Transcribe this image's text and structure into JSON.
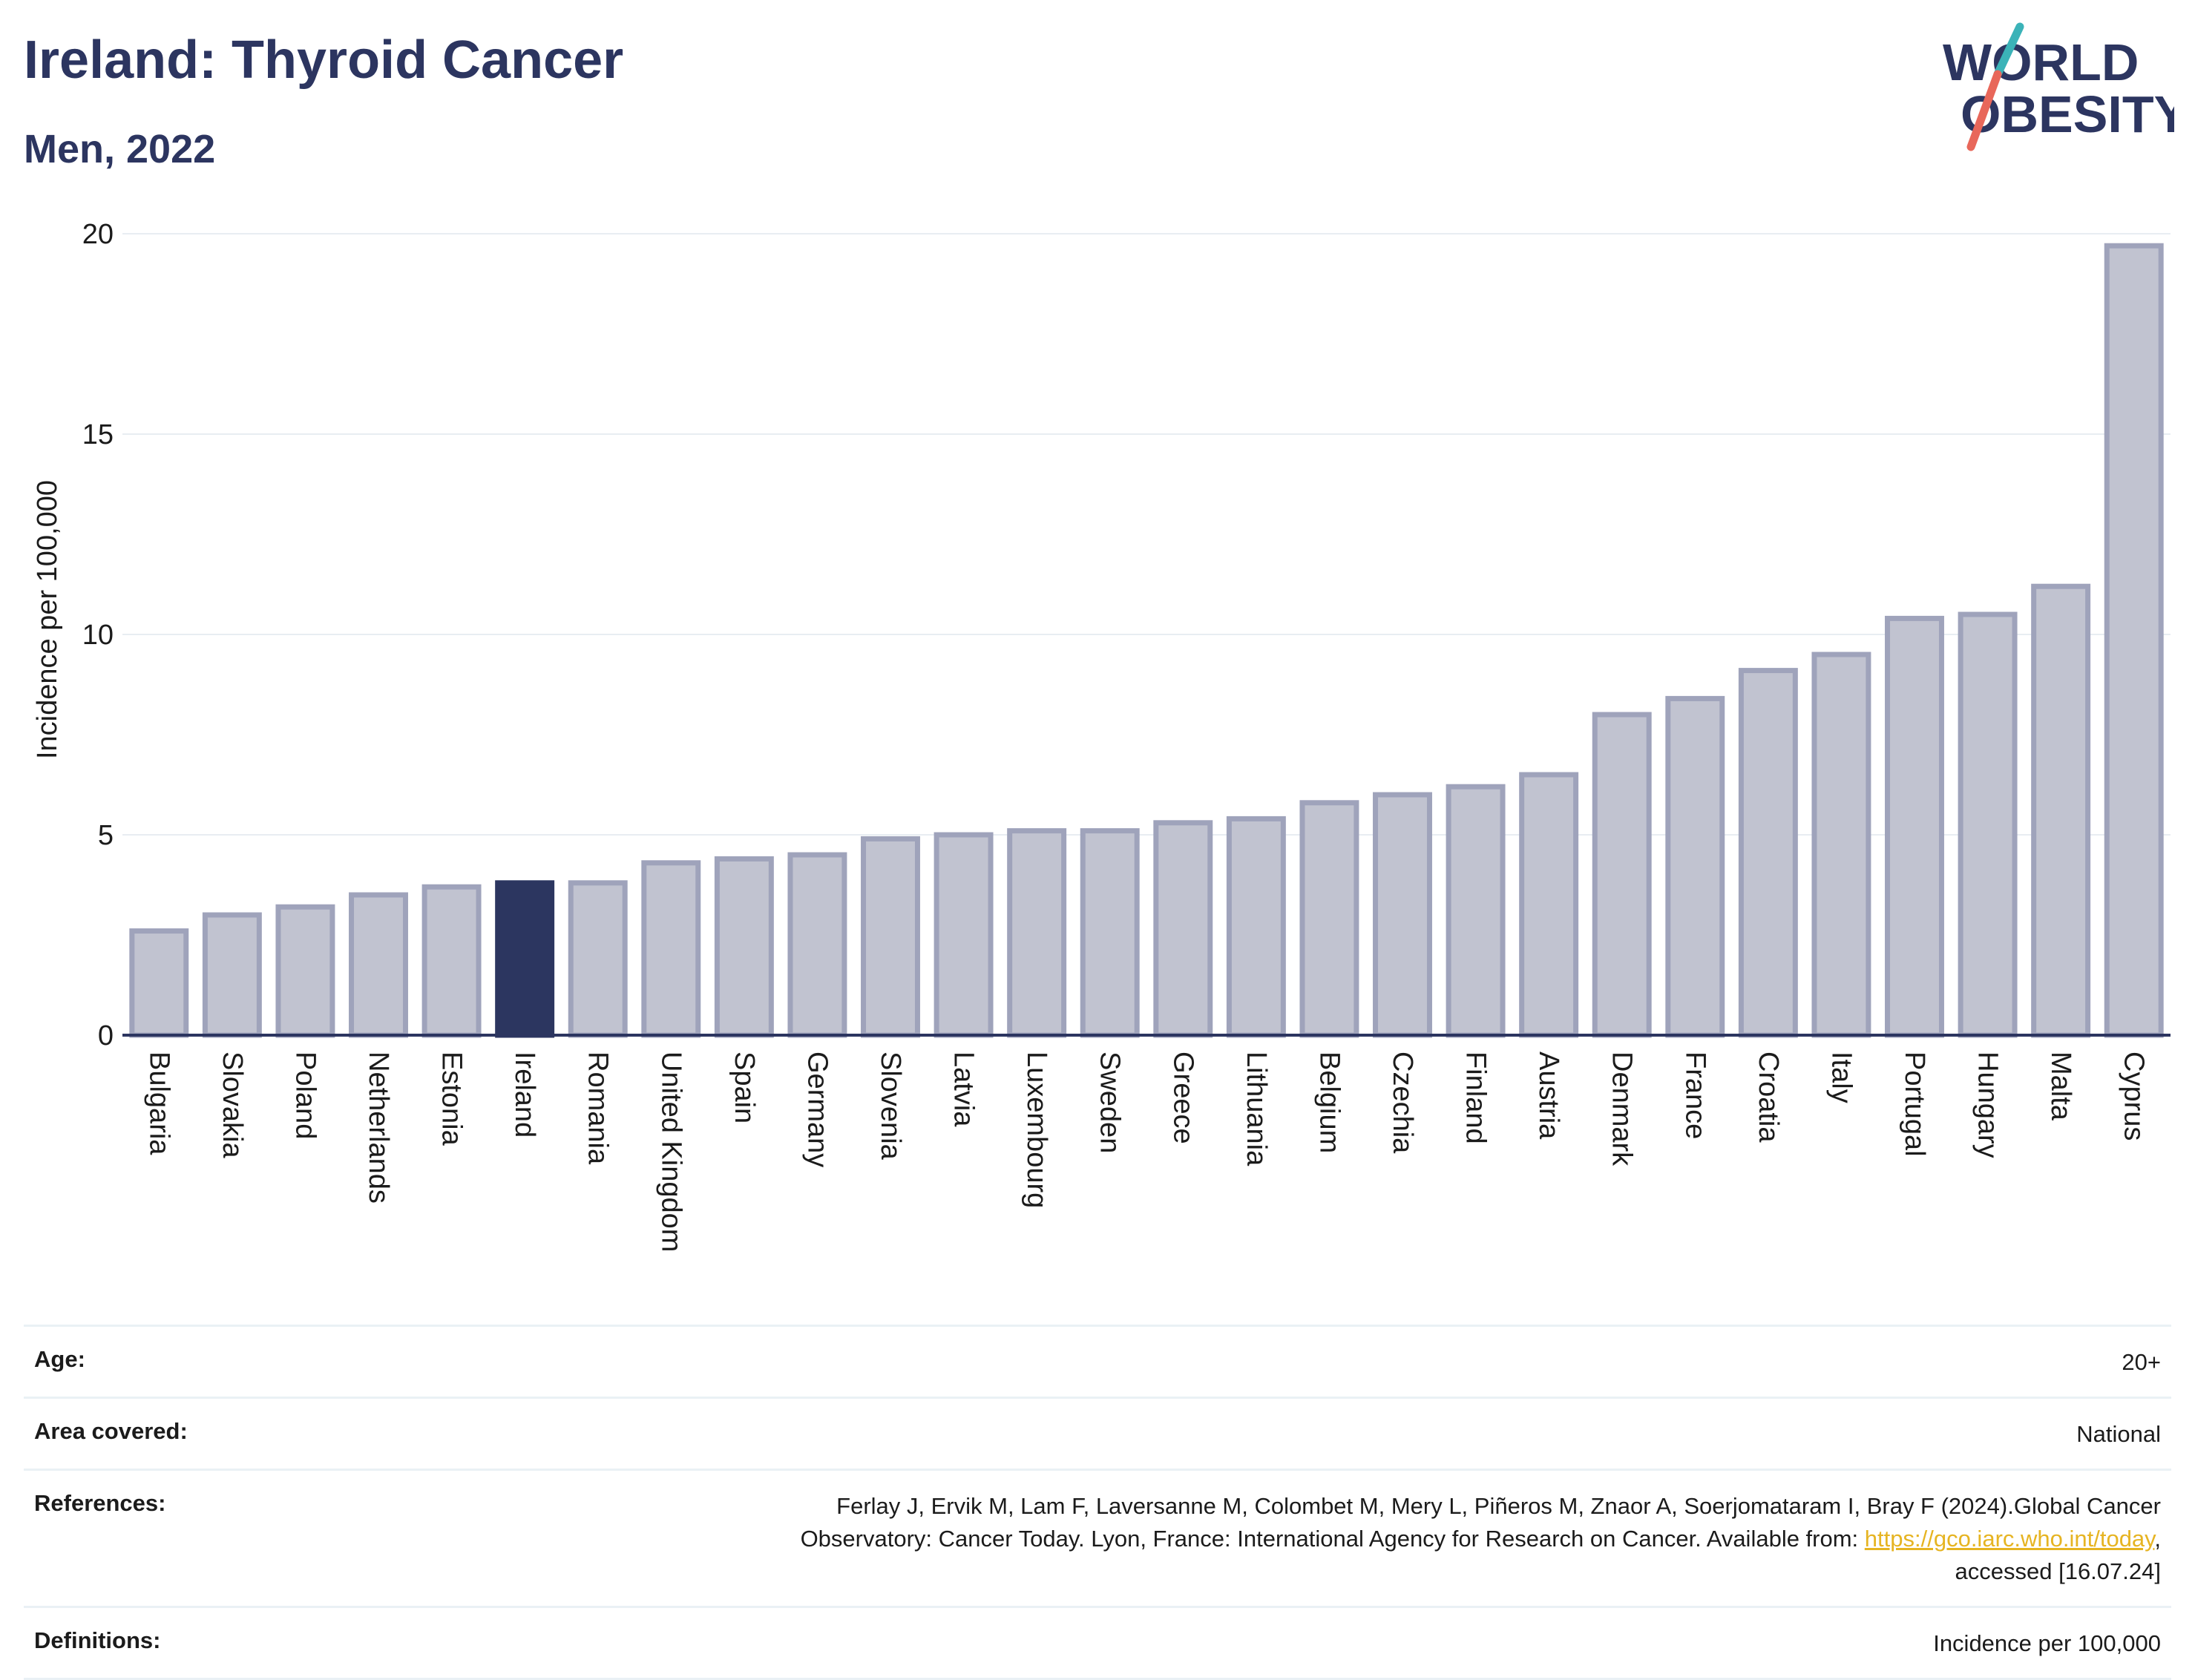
{
  "header": {
    "title": "Ireland: Thyroid Cancer",
    "subtitle": "Men, 2022"
  },
  "logo": {
    "line1": "WORLD",
    "line2": "OBESITY",
    "colors": {
      "text": "#2c3560",
      "slash_top": "#3bb3b8",
      "slash_bottom": "#e8675a"
    }
  },
  "chart_data": {
    "type": "bar",
    "ylabel": "Incidence per 100,000",
    "xlabel": "",
    "ylim": [
      0,
      20
    ],
    "yticks": [
      0,
      5,
      10,
      15,
      20
    ],
    "grid": true,
    "highlight": "Ireland",
    "colors": {
      "bar": "#c1c3d0",
      "bar_border": "#9fa3bb",
      "highlight": "#2c3660"
    },
    "categories": [
      "Bulgaria",
      "Slovakia",
      "Poland",
      "Netherlands",
      "Estonia",
      "Ireland",
      "Romania",
      "United Kingdom",
      "Spain",
      "Germany",
      "Slovenia",
      "Latvia",
      "Luxembourg",
      "Sweden",
      "Greece",
      "Lithuania",
      "Belgium",
      "Czechia",
      "Finland",
      "Austria",
      "Denmark",
      "France",
      "Croatia",
      "Italy",
      "Portugal",
      "Hungary",
      "Malta",
      "Cyprus"
    ],
    "values": [
      2.6,
      3.0,
      3.2,
      3.5,
      3.7,
      3.8,
      3.8,
      4.3,
      4.4,
      4.5,
      4.9,
      5.0,
      5.1,
      5.1,
      5.3,
      5.4,
      5.8,
      6.0,
      6.2,
      6.5,
      8.0,
      8.4,
      9.1,
      9.5,
      10.4,
      10.5,
      11.2,
      19.7
    ]
  },
  "info": {
    "age_label": "Age:",
    "age_value": "20+",
    "area_label": "Area covered:",
    "area_value": "National",
    "references_label": "References:",
    "references_line1": "Ferlay J, Ervik M, Lam F, Laversanne M, Colombet M, Mery L, Piñeros M, Znaor A, Soerjomataram I, Bray F (2024).Global Cancer",
    "references_line2_pre": "Observatory: Cancer Today. Lyon, France: International Agency for Research on Cancer. Available from: ",
    "references_link": "https://gco.iarc.who.int/today",
    "references_line2_post": ",",
    "references_line3": "accessed [16.07.24]",
    "definitions_label": "Definitions:",
    "definitions_value": "Incidence per 100,000"
  }
}
